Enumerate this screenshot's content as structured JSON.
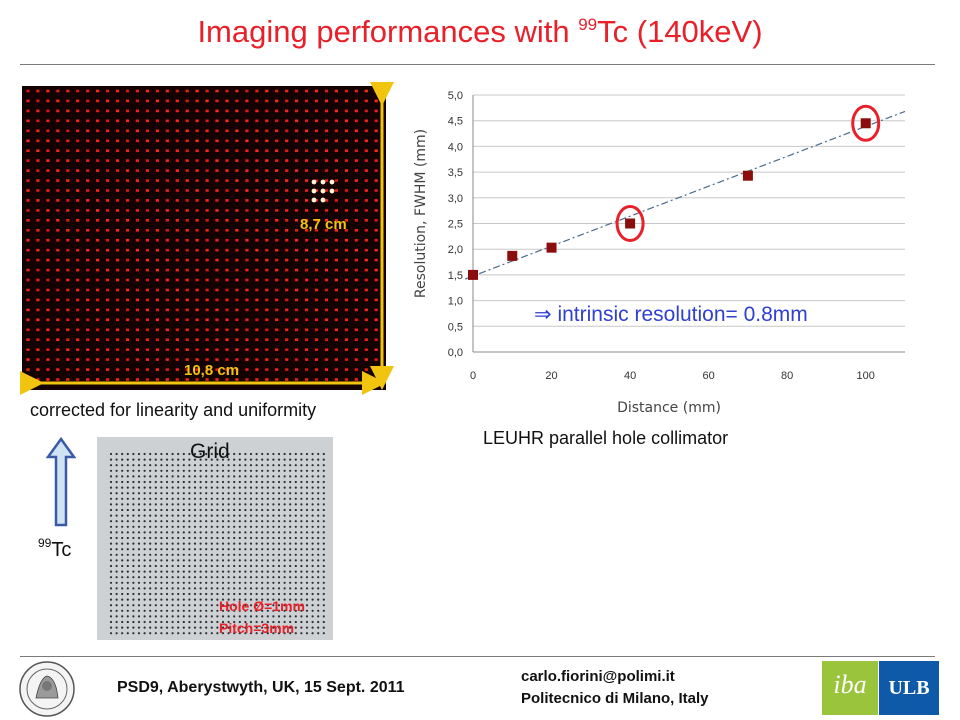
{
  "header": {
    "title_prefix": "Imaging performances with ",
    "title_sup": "99",
    "title_suffix": "Tc (140keV)"
  },
  "image_panel": {
    "height_label": "8,7 cm",
    "width_label": "10,8 cm",
    "caption": "corrected for linearity and uniformity"
  },
  "source": {
    "sup": "99",
    "label": "Tc"
  },
  "grid_photo": {
    "label": "Grid",
    "hole_label": "Hole Ø=1mm",
    "pitch_label": "Pitch=3mm"
  },
  "chart_caption": "LEUHR parallel hole collimator",
  "annotation": {
    "arrow_symbol": "⇒",
    "text": " intrinsic resolution= 0.8mm"
  },
  "chart_data": {
    "type": "scatter",
    "title": "",
    "xlabel": "Distance (mm)",
    "ylabel": "Resolution, FWHM (mm)",
    "xlim": [
      0,
      110
    ],
    "ylim": [
      0,
      5
    ],
    "x_ticks": [
      "0",
      "20",
      "40",
      "60",
      "80",
      "100"
    ],
    "y_ticks": [
      "0,0",
      "0,5",
      "1,0",
      "1,5",
      "2,0",
      "2,5",
      "3,0",
      "3,5",
      "4,0",
      "4,5",
      "5,0"
    ],
    "series": [
      {
        "x": [
          0,
          10,
          20,
          40,
          70,
          100
        ],
        "y": [
          1.5,
          1.87,
          2.03,
          2.5,
          3.43,
          4.45
        ],
        "marker_color": "#8b0d0d"
      }
    ],
    "trendline": {
      "x": [
        -2,
        110
      ],
      "y": [
        1.42,
        4.68
      ],
      "color": "#4a6b8a",
      "style": "dash-dot"
    },
    "highlighted_points_x": [
      40,
      100
    ],
    "highlight_color": "#e8202a",
    "grid": "horizontal"
  },
  "footer": {
    "conference": "PSD9, Aberystwyth, UK, 15 Sept. 2011",
    "email": "carlo.fiorini@polimi.it",
    "institution": "Politecnico di Milano, Italy",
    "logo_iba": "iba",
    "logo_ulb": "ULB"
  }
}
